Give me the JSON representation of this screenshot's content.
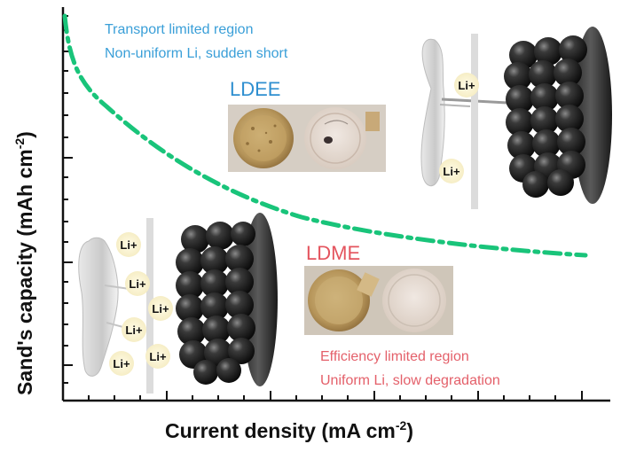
{
  "figure": {
    "ylabel": "Sand's capacity (mAh cm",
    "ylabel_sup": "-2",
    "ylabel_close": ")",
    "xlabel": "Current density (mA cm",
    "xlabel_sup": "-2",
    "xlabel_close": ")",
    "top_region": {
      "line1": "Transport limited region",
      "line2": "Non-uniform Li, sudden short"
    },
    "bottom_region": {
      "line1": "Efficiency limited region",
      "line2": "Uniform Li, slow degradation"
    },
    "ldee_label": "LDEE",
    "ldme_label": "LDME",
    "ion_label": "Li+",
    "curve_color": "#19c47a",
    "top_region_color": "#3a9fd8",
    "bottom_region_color": "#e4606a"
  }
}
